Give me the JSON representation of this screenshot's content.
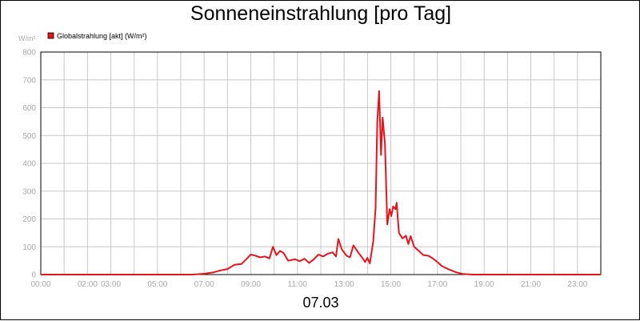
{
  "chart_data": {
    "type": "line",
    "title": "Sonneneinstrahlung [pro Tag]",
    "ylabel": "W/m²",
    "xlabel": "07.03",
    "ylim": [
      0,
      800
    ],
    "xlim_hours": [
      0,
      24
    ],
    "y_ticks": [
      "0",
      "100",
      "200",
      "300",
      "400",
      "500",
      "600",
      "700",
      "800"
    ],
    "x_ticks": [
      {
        "h": 0,
        "label": "00:00"
      },
      {
        "h": 2,
        "label": "02:00"
      },
      {
        "h": 3,
        "label": "03:00"
      },
      {
        "h": 5,
        "label": "05:00"
      },
      {
        "h": 7,
        "label": "07:00"
      },
      {
        "h": 9,
        "label": "09:00"
      },
      {
        "h": 11,
        "label": "11:00"
      },
      {
        "h": 13,
        "label": "13:00"
      },
      {
        "h": 15,
        "label": "15:00"
      },
      {
        "h": 17,
        "label": "17:00"
      },
      {
        "h": 19,
        "label": "19:00"
      },
      {
        "h": 21,
        "label": "21:00"
      },
      {
        "h": 23,
        "label": "23:00"
      }
    ],
    "grid": true,
    "legend_position": "top-left",
    "series": [
      {
        "name": "Globalstrahlung [akt] (W/m²)",
        "color": "#e8141c",
        "points": [
          [
            0,
            0
          ],
          [
            6.5,
            0
          ],
          [
            7,
            3
          ],
          [
            7.4,
            8
          ],
          [
            7.7,
            15
          ],
          [
            8.0,
            20
          ],
          [
            8.3,
            35
          ],
          [
            8.6,
            38
          ],
          [
            8.8,
            55
          ],
          [
            9.0,
            72
          ],
          [
            9.2,
            68
          ],
          [
            9.4,
            62
          ],
          [
            9.6,
            65
          ],
          [
            9.8,
            58
          ],
          [
            9.95,
            100
          ],
          [
            10.1,
            70
          ],
          [
            10.25,
            85
          ],
          [
            10.4,
            78
          ],
          [
            10.6,
            50
          ],
          [
            10.9,
            55
          ],
          [
            11.1,
            48
          ],
          [
            11.3,
            57
          ],
          [
            11.5,
            42
          ],
          [
            11.7,
            55
          ],
          [
            11.9,
            72
          ],
          [
            12.1,
            65
          ],
          [
            12.3,
            75
          ],
          [
            12.5,
            80
          ],
          [
            12.65,
            65
          ],
          [
            12.75,
            128
          ],
          [
            12.9,
            90
          ],
          [
            13.1,
            68
          ],
          [
            13.25,
            62
          ],
          [
            13.4,
            105
          ],
          [
            13.6,
            80
          ],
          [
            13.8,
            58
          ],
          [
            13.9,
            45
          ],
          [
            14.0,
            60
          ],
          [
            14.1,
            40
          ],
          [
            14.25,
            120
          ],
          [
            14.35,
            240
          ],
          [
            14.42,
            550
          ],
          [
            14.5,
            660
          ],
          [
            14.58,
            430
          ],
          [
            14.65,
            565
          ],
          [
            14.75,
            470
          ],
          [
            14.85,
            180
          ],
          [
            14.95,
            235
          ],
          [
            15.02,
            210
          ],
          [
            15.1,
            245
          ],
          [
            15.2,
            235
          ],
          [
            15.25,
            258
          ],
          [
            15.35,
            150
          ],
          [
            15.5,
            130
          ],
          [
            15.65,
            140
          ],
          [
            15.75,
            110
          ],
          [
            15.85,
            138
          ],
          [
            16.0,
            100
          ],
          [
            16.2,
            85
          ],
          [
            16.4,
            70
          ],
          [
            16.6,
            68
          ],
          [
            16.8,
            58
          ],
          [
            17.0,
            45
          ],
          [
            17.2,
            30
          ],
          [
            17.5,
            18
          ],
          [
            17.8,
            8
          ],
          [
            18.1,
            2
          ],
          [
            18.5,
            0
          ],
          [
            24,
            0
          ]
        ]
      }
    ]
  }
}
